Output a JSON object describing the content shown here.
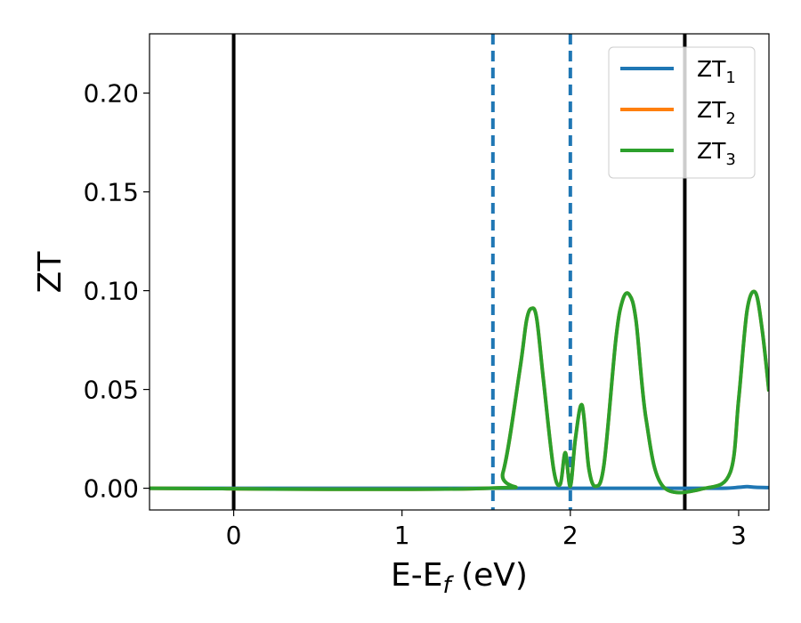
{
  "chart_data": {
    "type": "line",
    "xlabel_base": "E-E",
    "xlabel_sub": "f",
    "xlabel_unit": " (eV)",
    "ylabel": "ZT",
    "xlim": [
      -0.5,
      3.18
    ],
    "ylim": [
      -0.011,
      0.23
    ],
    "xticks": [
      0,
      1,
      2,
      3
    ],
    "xtick_labels": [
      "0",
      "1",
      "2",
      "3"
    ],
    "yticks": [
      0.0,
      0.05,
      0.1,
      0.15,
      0.2
    ],
    "ytick_labels": [
      "0.00",
      "0.05",
      "0.10",
      "0.15",
      "0.20"
    ],
    "vlines": [
      {
        "x": 0.0,
        "style": "solid",
        "color": "#000000"
      },
      {
        "x": 2.68,
        "style": "solid",
        "color": "#000000"
      },
      {
        "x": 1.54,
        "style": "dashed",
        "color": "#1f77b4"
      },
      {
        "x": 2.0,
        "style": "dashed",
        "color": "#1f77b4"
      }
    ],
    "legend_position": "top-right",
    "series": [
      {
        "name": "ZT",
        "sub": "1",
        "color": "#1f77b4",
        "x": [
          -0.5,
          0.0,
          1.0,
          1.55,
          2.0,
          2.5,
          2.9,
          3.0,
          3.05,
          3.1,
          3.18
        ],
        "y": [
          0.0,
          0.0,
          0.0,
          0.0,
          0.0,
          0.0,
          0.0,
          0.0005,
          0.0008,
          0.0005,
          0.0003
        ]
      },
      {
        "name": "ZT",
        "sub": "2",
        "color": "#ff7f0e",
        "x": [
          -0.5,
          1.5,
          1.6,
          1.7,
          1.74,
          1.77,
          1.8,
          1.84,
          1.9,
          1.94,
          1.97,
          2.0,
          2.03,
          2.07,
          2.11,
          2.15,
          2.2,
          2.27,
          2.31,
          2.35,
          2.39,
          2.45,
          2.55,
          2.8,
          2.95,
          3.0,
          3.05,
          3.1,
          3.14,
          3.18
        ],
        "y": [
          0.0,
          0.0,
          0.008,
          0.06,
          0.085,
          0.091,
          0.086,
          0.055,
          0.01,
          0.002,
          0.018,
          0.001,
          0.025,
          0.042,
          0.01,
          0.001,
          0.012,
          0.075,
          0.095,
          0.098,
          0.085,
          0.035,
          0.001,
          0.0,
          0.008,
          0.045,
          0.09,
          0.099,
          0.08,
          0.049
        ]
      },
      {
        "name": "ZT",
        "sub": "3",
        "color": "#2ca02c",
        "x": [
          -0.5,
          1.5,
          1.6,
          1.7,
          1.74,
          1.77,
          1.8,
          1.84,
          1.9,
          1.94,
          1.97,
          2.0,
          2.03,
          2.07,
          2.11,
          2.15,
          2.2,
          2.27,
          2.31,
          2.35,
          2.39,
          2.45,
          2.55,
          2.8,
          2.95,
          3.0,
          3.05,
          3.1,
          3.14,
          3.18
        ],
        "y": [
          0.0,
          0.0,
          0.008,
          0.06,
          0.085,
          0.091,
          0.086,
          0.055,
          0.01,
          0.002,
          0.018,
          0.001,
          0.025,
          0.042,
          0.01,
          0.001,
          0.012,
          0.075,
          0.095,
          0.098,
          0.085,
          0.035,
          0.001,
          0.0,
          0.008,
          0.045,
          0.09,
          0.099,
          0.08,
          0.049
        ]
      }
    ]
  }
}
